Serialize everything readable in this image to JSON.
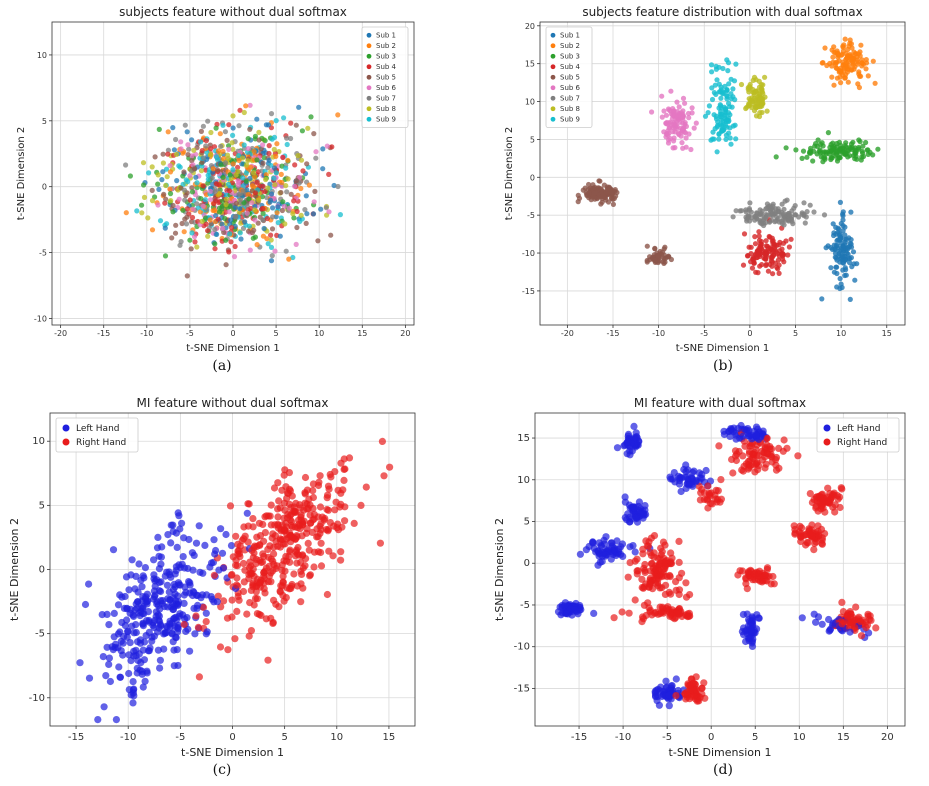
{
  "chart_data": [
    {
      "type": "scatter",
      "title": "subjects feature without dual softmax",
      "xlabel": "t-SNE Dimension 1",
      "ylabel": "t-SNE Dimension 2",
      "xlim": [
        -21,
        21
      ],
      "ylim": [
        -10.5,
        12.5
      ],
      "xticks": [
        -20,
        -15,
        -10,
        -5,
        0,
        5,
        10,
        15,
        20
      ],
      "yticks": [
        -10,
        -5,
        0,
        5,
        10
      ],
      "grid": true,
      "legend": "top-right",
      "caption": "(a)",
      "series": [
        {
          "name": "Sub 1",
          "color": "#1f77b4"
        },
        {
          "name": "Sub 2",
          "color": "#ff7f0e"
        },
        {
          "name": "Sub 3",
          "color": "#2ca02c"
        },
        {
          "name": "Sub 4",
          "color": "#d62728"
        },
        {
          "name": "Sub 5",
          "color": "#8c564b"
        },
        {
          "name": "Sub 6",
          "color": "#e377c2"
        },
        {
          "name": "Sub 7",
          "color": "#7f7f7f"
        },
        {
          "name": "Sub 8",
          "color": "#bcbd22"
        },
        {
          "name": "Sub 9",
          "color": "#17becf"
        }
      ],
      "clusters": [
        {
          "series": 0,
          "center": [
            0,
            0
          ],
          "spread": [
            9,
            4.5
          ],
          "n": 110
        },
        {
          "series": 1,
          "center": [
            0,
            0
          ],
          "spread": [
            9,
            4.5
          ],
          "n": 110
        },
        {
          "series": 2,
          "center": [
            0,
            0
          ],
          "spread": [
            9,
            4.5
          ],
          "n": 110
        },
        {
          "series": 3,
          "center": [
            0,
            0
          ],
          "spread": [
            9,
            4.5
          ],
          "n": 110
        },
        {
          "series": 4,
          "center": [
            0,
            0
          ],
          "spread": [
            9,
            4.5
          ],
          "n": 110
        },
        {
          "series": 5,
          "center": [
            0,
            0
          ],
          "spread": [
            9,
            4.5
          ],
          "n": 110
        },
        {
          "series": 6,
          "center": [
            0,
            0
          ],
          "spread": [
            9,
            4.5
          ],
          "n": 110
        },
        {
          "series": 7,
          "center": [
            0,
            0
          ],
          "spread": [
            9,
            4.5
          ],
          "n": 110
        },
        {
          "series": 8,
          "center": [
            0,
            0
          ],
          "spread": [
            9,
            4.5
          ],
          "n": 110
        }
      ]
    },
    {
      "type": "scatter",
      "title": "subjects feature distribution with dual softmax",
      "xlabel": "t-SNE Dimension 1",
      "ylabel": "t-SNE Dimension 2",
      "xlim": [
        -23,
        17
      ],
      "ylim": [
        -19.5,
        20.5
      ],
      "xticks": [
        -20,
        -15,
        -10,
        -5,
        0,
        5,
        10,
        15
      ],
      "yticks": [
        -15,
        -10,
        -5,
        0,
        5,
        10,
        15,
        20
      ],
      "grid": true,
      "legend": "top-left",
      "caption": "(b)",
      "series": [
        {
          "name": "Sub 1",
          "color": "#1f77b4"
        },
        {
          "name": "Sub 2",
          "color": "#ff7f0e"
        },
        {
          "name": "Sub 3",
          "color": "#2ca02c"
        },
        {
          "name": "Sub 4",
          "color": "#d62728"
        },
        {
          "name": "Sub 5",
          "color": "#8c564b"
        },
        {
          "name": "Sub 6",
          "color": "#e377c2"
        },
        {
          "name": "Sub 7",
          "color": "#7f7f7f"
        },
        {
          "name": "Sub 8",
          "color": "#bcbd22"
        },
        {
          "name": "Sub 9",
          "color": "#17becf"
        }
      ],
      "clusters": [
        {
          "series": 0,
          "center": [
            10,
            -10
          ],
          "spread": [
            1.3,
            4.5
          ],
          "n": 110
        },
        {
          "series": 1,
          "center": [
            10.5,
            15
          ],
          "spread": [
            2.2,
            2.5
          ],
          "n": 120
        },
        {
          "series": 2,
          "center": [
            9.5,
            3.5
          ],
          "spread": [
            4,
            1.3
          ],
          "n": 120
        },
        {
          "series": 3,
          "center": [
            2,
            -10
          ],
          "spread": [
            2.5,
            2.5
          ],
          "n": 120
        },
        {
          "series": 4,
          "center": [
            -16.5,
            -2
          ],
          "spread": [
            2.2,
            1.3
          ],
          "n": 110
        },
        {
          "series": 5,
          "center": [
            -8,
            7
          ],
          "spread": [
            1.6,
            2.8
          ],
          "n": 110
        },
        {
          "series": 6,
          "center": [
            2.5,
            -5
          ],
          "spread": [
            4,
            1.5
          ],
          "n": 120
        },
        {
          "series": 7,
          "center": [
            0.8,
            10.5
          ],
          "spread": [
            1.2,
            2.5
          ],
          "n": 80
        },
        {
          "series": 8,
          "center": [
            -3,
            9
          ],
          "spread": [
            1.6,
            5.5
          ],
          "n": 110
        },
        {
          "series": 4,
          "center": [
            -10,
            -10.5
          ],
          "spread": [
            1.1,
            1.1
          ],
          "n": 50
        }
      ]
    },
    {
      "type": "scatter",
      "title": "MI feature without dual softmax",
      "xlabel": "t-SNE Dimension 1",
      "ylabel": "t-SNE Dimension 2",
      "xlim": [
        -17.5,
        17.5
      ],
      "ylim": [
        -12.2,
        12.2
      ],
      "xticks": [
        -15,
        -10,
        -5,
        0,
        5,
        10,
        15
      ],
      "yticks": [
        -10,
        -5,
        0,
        5,
        10
      ],
      "grid": true,
      "legend": "top-left",
      "caption": "(c)",
      "series": [
        {
          "name": "Left Hand",
          "color": "#1f1fde"
        },
        {
          "name": "Right Hand",
          "color": "#e81c1c"
        }
      ],
      "clusters": [
        {
          "series": 0,
          "center": [
            -7,
            -3
          ],
          "spread": [
            5.5,
            5
          ],
          "n": 330,
          "tilt": 0.55
        },
        {
          "series": 1,
          "center": [
            5,
            2
          ],
          "spread": [
            6.5,
            5
          ],
          "n": 380,
          "tilt": 0.55
        }
      ]
    },
    {
      "type": "scatter",
      "title": "MI feature with dual softmax",
      "xlabel": "t-SNE Dimension 1",
      "ylabel": "t-SNE Dimension 2",
      "xlim": [
        -20,
        22
      ],
      "ylim": [
        -19.5,
        18
      ],
      "xticks": [
        -15,
        -10,
        -5,
        0,
        5,
        10,
        15,
        20
      ],
      "yticks": [
        -15,
        -10,
        -5,
        0,
        5,
        10,
        15
      ],
      "grid": true,
      "legend": "top-right",
      "caption": "(d)",
      "series": [
        {
          "name": "Left Hand",
          "color": "#1f1fde"
        },
        {
          "name": "Right Hand",
          "color": "#e81c1c"
        }
      ],
      "clusters": [
        {
          "series": 0,
          "center": [
            -9,
            14.5
          ],
          "spread": [
            1.2,
            1.3
          ],
          "n": 45
        },
        {
          "series": 0,
          "center": [
            -2.5,
            10
          ],
          "spread": [
            2,
            1.2
          ],
          "n": 45
        },
        {
          "series": 0,
          "center": [
            -8.5,
            6.5
          ],
          "spread": [
            1.5,
            1.5
          ],
          "n": 45
        },
        {
          "series": 0,
          "center": [
            -12,
            1.5
          ],
          "spread": [
            3,
            1.5
          ],
          "n": 60
        },
        {
          "series": 0,
          "center": [
            -16,
            -5.5
          ],
          "spread": [
            1.5,
            0.9
          ],
          "n": 50
        },
        {
          "series": 0,
          "center": [
            4.5,
            -8
          ],
          "spread": [
            1.1,
            1.8
          ],
          "n": 45
        },
        {
          "series": 0,
          "center": [
            -5,
            -15.5
          ],
          "spread": [
            1.5,
            1.4
          ],
          "n": 50
        },
        {
          "series": 0,
          "center": [
            4,
            15.5
          ],
          "spread": [
            3,
            0.9
          ],
          "n": 50
        },
        {
          "series": 0,
          "center": [
            15,
            -7.5
          ],
          "spread": [
            3,
            1.2
          ],
          "n": 30
        },
        {
          "series": 1,
          "center": [
            -6,
            -1
          ],
          "spread": [
            3,
            3.5
          ],
          "n": 120
        },
        {
          "series": 1,
          "center": [
            -5,
            -6
          ],
          "spread": [
            3.5,
            0.8
          ],
          "n": 50
        },
        {
          "series": 1,
          "center": [
            5,
            13
          ],
          "spread": [
            3,
            2
          ],
          "n": 80
        },
        {
          "series": 1,
          "center": [
            13,
            7.5
          ],
          "spread": [
            1.8,
            1.5
          ],
          "n": 55
        },
        {
          "series": 1,
          "center": [
            11,
            3.5
          ],
          "spread": [
            2,
            1.5
          ],
          "n": 50
        },
        {
          "series": 1,
          "center": [
            5,
            -1.5
          ],
          "spread": [
            2.5,
            1.2
          ],
          "n": 45
        },
        {
          "series": 1,
          "center": [
            -2,
            -15.5
          ],
          "spread": [
            1.5,
            1.5
          ],
          "n": 55
        },
        {
          "series": 1,
          "center": [
            16,
            -7
          ],
          "spread": [
            2.5,
            1.5
          ],
          "n": 60
        },
        {
          "series": 1,
          "center": [
            0,
            8
          ],
          "spread": [
            1.5,
            1.5
          ],
          "n": 25
        }
      ]
    }
  ]
}
